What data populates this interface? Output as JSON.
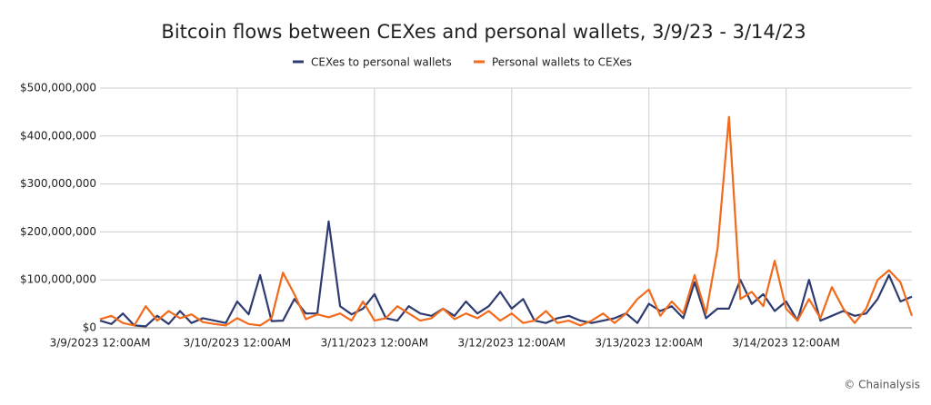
{
  "chart_data": {
    "type": "line",
    "title": "Bitcoin flows between CEXes and personal wallets, 3/9/23 - 3/14/23",
    "source": "© Chainalysis",
    "categories": [
      "3/9/2023 12:00AM",
      null,
      null,
      null,
      null,
      null,
      null,
      null,
      null,
      null,
      null,
      null,
      "3/10/2023 12:00AM",
      null,
      null,
      null,
      null,
      null,
      null,
      null,
      null,
      null,
      null,
      null,
      "3/11/2023 12:00AM",
      null,
      null,
      null,
      null,
      null,
      null,
      null,
      null,
      null,
      null,
      null,
      "3/12/2023 12:00AM",
      null,
      null,
      null,
      null,
      null,
      null,
      null,
      null,
      null,
      null,
      null,
      "3/13/2023 12:00AM",
      null,
      null,
      null,
      null,
      null,
      null,
      null,
      null,
      null,
      null,
      null,
      "3/14/2023 12:00AM",
      null,
      null,
      null,
      null,
      null,
      null,
      null,
      null,
      null,
      null,
      null
    ],
    "series": [
      {
        "name": "CEXes to personal wallets",
        "color": "#2e3b70",
        "values": [
          15000000,
          8000000,
          30000000,
          5000000,
          3000000,
          25000000,
          8000000,
          35000000,
          10000000,
          20000000,
          15000000,
          10000000,
          55000000,
          28000000,
          110000000,
          14000000,
          15000000,
          60000000,
          30000000,
          30000000,
          222000000,
          45000000,
          28000000,
          40000000,
          70000000,
          20000000,
          15000000,
          45000000,
          30000000,
          25000000,
          40000000,
          25000000,
          55000000,
          30000000,
          45000000,
          75000000,
          40000000,
          60000000,
          15000000,
          10000000,
          20000000,
          25000000,
          15000000,
          10000000,
          15000000,
          20000000,
          30000000,
          10000000,
          50000000,
          35000000,
          45000000,
          20000000,
          95000000,
          20000000,
          40000000,
          40000000,
          100000000,
          50000000,
          70000000,
          35000000,
          55000000,
          15000000,
          100000000,
          15000000,
          25000000,
          35000000,
          25000000,
          30000000,
          60000000,
          110000000,
          55000000,
          65000000
        ]
      },
      {
        "name": "Personal wallets to CEXes",
        "color": "#f26a1b",
        "values": [
          18000000,
          25000000,
          10000000,
          5000000,
          45000000,
          15000000,
          35000000,
          20000000,
          28000000,
          12000000,
          8000000,
          5000000,
          20000000,
          8000000,
          5000000,
          20000000,
          115000000,
          70000000,
          18000000,
          28000000,
          22000000,
          30000000,
          15000000,
          55000000,
          15000000,
          20000000,
          45000000,
          30000000,
          15000000,
          20000000,
          40000000,
          18000000,
          30000000,
          20000000,
          35000000,
          15000000,
          30000000,
          10000000,
          15000000,
          35000000,
          10000000,
          15000000,
          5000000,
          15000000,
          30000000,
          10000000,
          30000000,
          60000000,
          80000000,
          25000000,
          55000000,
          30000000,
          110000000,
          30000000,
          165000000,
          440000000,
          60000000,
          75000000,
          45000000,
          140000000,
          40000000,
          15000000,
          60000000,
          20000000,
          85000000,
          40000000,
          10000000,
          40000000,
          100000000,
          120000000,
          95000000,
          25000000
        ]
      }
    ],
    "ylim": [
      0,
      500000000
    ],
    "yticks": [
      {
        "value": 0,
        "label": "$0"
      },
      {
        "value": 100000000,
        "label": "$100,000,000"
      },
      {
        "value": 200000000,
        "label": "$200,000,000"
      },
      {
        "value": 300000000,
        "label": "$300,000,000"
      },
      {
        "value": 400000000,
        "label": "$400,000,000"
      },
      {
        "value": 500000000,
        "label": "$500,000,000"
      }
    ],
    "grid": true
  }
}
